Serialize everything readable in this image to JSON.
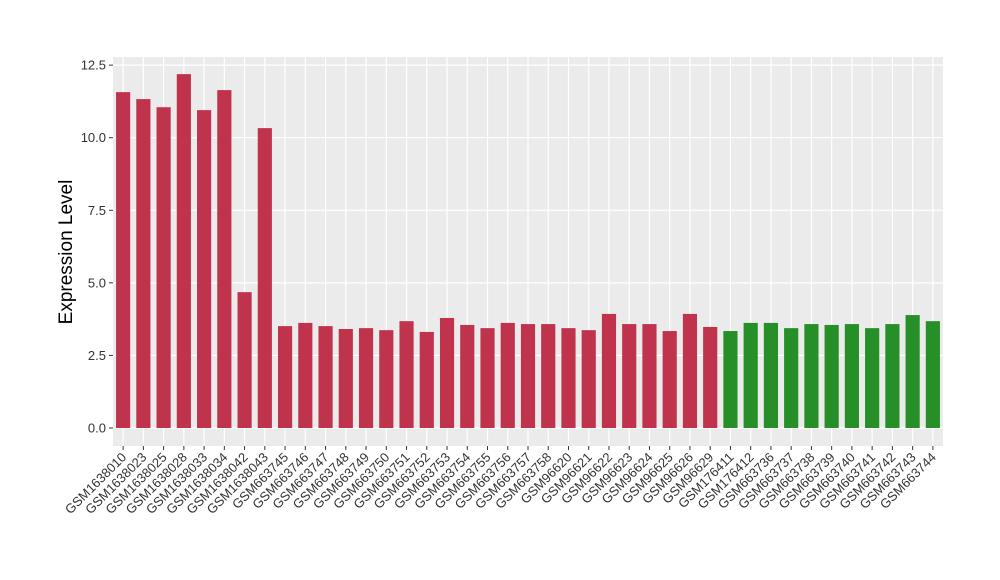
{
  "chart_data": {
    "type": "bar",
    "y_label": "Expression Level",
    "categories": [
      "GSM1638010",
      "GSM1638023",
      "GSM1638025",
      "GSM1638028",
      "GSM1638033",
      "GSM1638034",
      "GSM1638042",
      "GSM1638043",
      "GSM663745",
      "GSM663746",
      "GSM663747",
      "GSM663748",
      "GSM663749",
      "GSM663750",
      "GSM663751",
      "GSM663752",
      "GSM663753",
      "GSM663754",
      "GSM663755",
      "GSM663756",
      "GSM663757",
      "GSM663758",
      "GSM96620",
      "GSM96621",
      "GSM96622",
      "GSM96623",
      "GSM96624",
      "GSM96625",
      "GSM96626",
      "GSM96629",
      "GSM176411",
      "GSM176412",
      "GSM663736",
      "GSM663737",
      "GSM663738",
      "GSM663739",
      "GSM663740",
      "GSM663741",
      "GSM663742",
      "GSM663743",
      "GSM663744"
    ],
    "values": [
      11.57,
      11.33,
      11.05,
      12.19,
      10.95,
      11.64,
      4.68,
      10.33,
      3.51,
      3.62,
      3.51,
      3.41,
      3.44,
      3.37,
      3.68,
      3.31,
      3.79,
      3.55,
      3.44,
      3.62,
      3.58,
      3.58,
      3.44,
      3.37,
      3.93,
      3.58,
      3.58,
      3.34,
      3.93,
      3.48,
      3.34,
      3.62,
      3.62,
      3.44,
      3.58,
      3.55,
      3.58,
      3.44,
      3.58,
      3.89,
      3.68
    ],
    "colors": [
      "#c0334d",
      "#c0334d",
      "#c0334d",
      "#c0334d",
      "#c0334d",
      "#c0334d",
      "#c0334d",
      "#c0334d",
      "#c0334d",
      "#c0334d",
      "#c0334d",
      "#c0334d",
      "#c0334d",
      "#c0334d",
      "#c0334d",
      "#c0334d",
      "#c0334d",
      "#c0334d",
      "#c0334d",
      "#c0334d",
      "#c0334d",
      "#c0334d",
      "#c0334d",
      "#c0334d",
      "#c0334d",
      "#c0334d",
      "#c0334d",
      "#c0334d",
      "#c0334d",
      "#c0334d",
      "#268f27",
      "#268f27",
      "#268f27",
      "#268f27",
      "#268f27",
      "#268f27",
      "#268f27",
      "#268f27",
      "#268f27",
      "#268f27",
      "#268f27"
    ],
    "ylim": [
      -0.62,
      12.78
    ],
    "yticks": [
      {
        "value": 0,
        "label": "0.0"
      },
      2.5,
      {
        "value": 5,
        "label": "5.0"
      },
      7.5,
      {
        "value": 10,
        "label": "10.0"
      },
      12.5
    ],
    "grid": true
  }
}
